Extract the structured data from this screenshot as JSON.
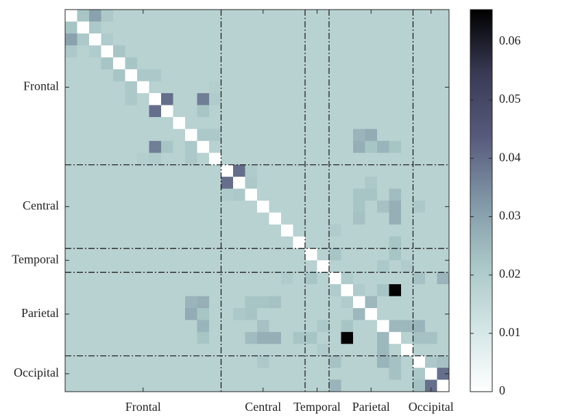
{
  "chart_data": {
    "type": "heatmap",
    "groups": [
      "Frontal",
      "Central",
      "Temporal",
      "Parietal",
      "Occipital"
    ],
    "group_sizes": [
      13,
      7,
      2,
      7,
      3
    ],
    "zlim": [
      0,
      0.0655
    ],
    "zticks": [
      0,
      0.01,
      0.02,
      0.03,
      0.04,
      0.05,
      0.06
    ],
    "colormap": [
      "#ffffff",
      "#d3e5e5",
      "#a9c6c6",
      "#8096a6",
      "#575a7c",
      "#3a3a56",
      "#000000"
    ],
    "values": [
      [
        0,
        0.022,
        0.03,
        0.021,
        0.018,
        0.018,
        0.018,
        0.018,
        0.018,
        0.018,
        0.018,
        0.018,
        0.018,
        0.018,
        0.018,
        0.018,
        0.018,
        0.018,
        0.018,
        0.018,
        0.018,
        0.018,
        0.018,
        0.018,
        0.018,
        0.018,
        0.018,
        0.018,
        0.018,
        0.018,
        0.018,
        0.018
      ],
      [
        0.022,
        0,
        0.021,
        0.018,
        0.018,
        0.018,
        0.018,
        0.018,
        0.018,
        0.018,
        0.018,
        0.018,
        0.018,
        0.018,
        0.018,
        0.018,
        0.018,
        0.018,
        0.018,
        0.018,
        0.018,
        0.018,
        0.018,
        0.018,
        0.018,
        0.018,
        0.018,
        0.018,
        0.018,
        0.018,
        0.018,
        0.018
      ],
      [
        0.03,
        0.021,
        0,
        0.02,
        0.018,
        0.018,
        0.018,
        0.018,
        0.018,
        0.018,
        0.018,
        0.018,
        0.018,
        0.018,
        0.018,
        0.018,
        0.018,
        0.018,
        0.018,
        0.018,
        0.018,
        0.018,
        0.018,
        0.018,
        0.018,
        0.018,
        0.018,
        0.018,
        0.018,
        0.018,
        0.018,
        0.018
      ],
      [
        0.021,
        0.018,
        0.02,
        0,
        0.022,
        0.018,
        0.018,
        0.018,
        0.018,
        0.018,
        0.018,
        0.018,
        0.018,
        0.018,
        0.018,
        0.018,
        0.018,
        0.018,
        0.018,
        0.018,
        0.018,
        0.018,
        0.018,
        0.018,
        0.018,
        0.018,
        0.018,
        0.018,
        0.018,
        0.018,
        0.018,
        0.018
      ],
      [
        0.018,
        0.018,
        0.018,
        0.022,
        0,
        0.022,
        0.018,
        0.018,
        0.018,
        0.018,
        0.018,
        0.018,
        0.018,
        0.018,
        0.018,
        0.018,
        0.018,
        0.018,
        0.018,
        0.018,
        0.018,
        0.018,
        0.018,
        0.018,
        0.018,
        0.018,
        0.018,
        0.018,
        0.018,
        0.018,
        0.018,
        0.018
      ],
      [
        0.018,
        0.018,
        0.018,
        0.018,
        0.022,
        0,
        0.021,
        0.021,
        0.018,
        0.018,
        0.018,
        0.018,
        0.018,
        0.018,
        0.018,
        0.018,
        0.018,
        0.018,
        0.018,
        0.018,
        0.018,
        0.018,
        0.018,
        0.018,
        0.018,
        0.018,
        0.018,
        0.018,
        0.018,
        0.018,
        0.018,
        0.018
      ],
      [
        0.018,
        0.018,
        0.018,
        0.018,
        0.018,
        0.021,
        0,
        0.018,
        0.018,
        0.018,
        0.018,
        0.018,
        0.019,
        0.018,
        0.018,
        0.018,
        0.018,
        0.018,
        0.018,
        0.018,
        0.018,
        0.018,
        0.018,
        0.018,
        0.018,
        0.018,
        0.018,
        0.018,
        0.018,
        0.018,
        0.018,
        0.018
      ],
      [
        0.018,
        0.018,
        0.018,
        0.018,
        0.018,
        0.021,
        0.018,
        0,
        0.04,
        0.018,
        0.018,
        0.037,
        0.02,
        0.018,
        0.018,
        0.018,
        0.018,
        0.018,
        0.018,
        0.018,
        0.018,
        0.018,
        0.018,
        0.018,
        0.018,
        0.018,
        0.018,
        0.018,
        0.018,
        0.018,
        0.018,
        0.018
      ],
      [
        0.018,
        0.018,
        0.018,
        0.018,
        0.018,
        0.018,
        0.018,
        0.04,
        0,
        0.018,
        0.018,
        0.022,
        0.018,
        0.018,
        0.018,
        0.018,
        0.018,
        0.018,
        0.018,
        0.018,
        0.018,
        0.018,
        0.018,
        0.018,
        0.018,
        0.018,
        0.018,
        0.018,
        0.018,
        0.018,
        0.018,
        0.018
      ],
      [
        0.018,
        0.018,
        0.018,
        0.018,
        0.018,
        0.018,
        0.018,
        0.018,
        0.018,
        0,
        0.018,
        0.018,
        0.018,
        0.018,
        0.018,
        0.018,
        0.018,
        0.018,
        0.018,
        0.018,
        0.018,
        0.018,
        0.018,
        0.018,
        0.018,
        0.018,
        0.018,
        0.018,
        0.018,
        0.018,
        0.018,
        0.018
      ],
      [
        0.018,
        0.018,
        0.018,
        0.018,
        0.018,
        0.018,
        0.018,
        0.018,
        0.018,
        0.018,
        0,
        0.021,
        0.021,
        0.018,
        0.018,
        0.018,
        0.018,
        0.018,
        0.018,
        0.018,
        0.018,
        0.018,
        0.018,
        0.018,
        0.026,
        0.028,
        0.018,
        0.018,
        0.018,
        0.018,
        0.018,
        0.018
      ],
      [
        0.018,
        0.018,
        0.018,
        0.018,
        0.018,
        0.018,
        0.018,
        0.037,
        0.022,
        0.018,
        0.021,
        0,
        0.018,
        0.018,
        0.018,
        0.018,
        0.018,
        0.018,
        0.018,
        0.018,
        0.018,
        0.018,
        0.018,
        0.018,
        0.027,
        0.022,
        0.026,
        0.022,
        0.018,
        0.018,
        0.018,
        0.018
      ],
      [
        0.018,
        0.018,
        0.018,
        0.018,
        0.018,
        0.018,
        0.019,
        0.02,
        0.018,
        0.018,
        0.021,
        0.018,
        0,
        0.018,
        0.018,
        0.018,
        0.018,
        0.018,
        0.018,
        0.018,
        0.018,
        0.018,
        0.018,
        0.018,
        0.018,
        0.018,
        0.018,
        0.018,
        0.018,
        0.018,
        0.018,
        0.018
      ],
      [
        0.018,
        0.018,
        0.018,
        0.018,
        0.018,
        0.018,
        0.018,
        0.018,
        0.018,
        0.018,
        0.018,
        0.018,
        0.018,
        0,
        0.04,
        0.02,
        0.018,
        0.018,
        0.018,
        0.018,
        0.018,
        0.018,
        0.018,
        0.018,
        0.018,
        0.018,
        0.018,
        0.018,
        0.018,
        0.018,
        0.018,
        0.018
      ],
      [
        0.018,
        0.018,
        0.018,
        0.018,
        0.018,
        0.018,
        0.018,
        0.018,
        0.018,
        0.018,
        0.018,
        0.018,
        0.018,
        0.04,
        0,
        0.021,
        0.018,
        0.018,
        0.018,
        0.018,
        0.018,
        0.018,
        0.018,
        0.018,
        0.018,
        0.021,
        0.018,
        0.018,
        0.018,
        0.018,
        0.018,
        0.018
      ],
      [
        0.018,
        0.018,
        0.018,
        0.018,
        0.018,
        0.018,
        0.018,
        0.018,
        0.018,
        0.018,
        0.018,
        0.018,
        0.018,
        0.02,
        0.021,
        0,
        0.018,
        0.018,
        0.018,
        0.018,
        0.018,
        0.018,
        0.018,
        0.018,
        0.022,
        0.022,
        0.018,
        0.024,
        0.018,
        0.018,
        0.018,
        0.018
      ],
      [
        0.018,
        0.018,
        0.018,
        0.018,
        0.018,
        0.018,
        0.018,
        0.018,
        0.018,
        0.018,
        0.018,
        0.018,
        0.018,
        0.018,
        0.018,
        0.018,
        0,
        0.018,
        0.018,
        0.018,
        0.018,
        0.018,
        0.018,
        0.018,
        0.022,
        0.018,
        0.023,
        0.027,
        0.018,
        0.021,
        0.018,
        0.018
      ],
      [
        0.018,
        0.018,
        0.018,
        0.018,
        0.018,
        0.018,
        0.018,
        0.018,
        0.018,
        0.018,
        0.018,
        0.018,
        0.018,
        0.018,
        0.018,
        0.018,
        0.018,
        0,
        0.018,
        0.018,
        0.018,
        0.018,
        0.018,
        0.018,
        0.023,
        0.018,
        0.018,
        0.027,
        0.018,
        0.018,
        0.018,
        0.018
      ],
      [
        0.018,
        0.018,
        0.018,
        0.018,
        0.018,
        0.018,
        0.018,
        0.018,
        0.018,
        0.018,
        0.018,
        0.018,
        0.018,
        0.018,
        0.018,
        0.018,
        0.018,
        0.018,
        0,
        0.018,
        0.018,
        0.018,
        0.02,
        0.018,
        0.018,
        0.018,
        0.018,
        0.018,
        0.018,
        0.018,
        0.018,
        0.018
      ],
      [
        0.018,
        0.018,
        0.018,
        0.018,
        0.018,
        0.018,
        0.018,
        0.018,
        0.018,
        0.018,
        0.018,
        0.018,
        0.018,
        0.018,
        0.018,
        0.018,
        0.018,
        0.018,
        0.018,
        0,
        0.018,
        0.018,
        0.018,
        0.018,
        0.018,
        0.018,
        0.018,
        0.022,
        0.018,
        0.018,
        0.018,
        0.018
      ],
      [
        0.018,
        0.018,
        0.018,
        0.018,
        0.018,
        0.018,
        0.018,
        0.018,
        0.018,
        0.018,
        0.018,
        0.018,
        0.018,
        0.018,
        0.018,
        0.018,
        0.018,
        0.018,
        0.018,
        0.018,
        0,
        0.018,
        0.022,
        0.018,
        0.018,
        0.018,
        0.018,
        0.022,
        0.018,
        0.018,
        0.018,
        0.018
      ],
      [
        0.018,
        0.018,
        0.018,
        0.018,
        0.018,
        0.018,
        0.018,
        0.018,
        0.018,
        0.018,
        0.018,
        0.018,
        0.018,
        0.018,
        0.018,
        0.018,
        0.018,
        0.018,
        0.018,
        0.018,
        0.018,
        0,
        0.018,
        0.018,
        0.018,
        0.018,
        0.021,
        0.018,
        0.02,
        0.018,
        0.018,
        0.018
      ],
      [
        0.018,
        0.018,
        0.018,
        0.018,
        0.018,
        0.018,
        0.018,
        0.018,
        0.018,
        0.018,
        0.018,
        0.018,
        0.018,
        0.018,
        0.018,
        0.018,
        0.018,
        0.018,
        0.02,
        0.018,
        0.022,
        0.018,
        0,
        0.02,
        0.018,
        0.018,
        0.018,
        0.018,
        0.018,
        0.023,
        0.018,
        0.026
      ],
      [
        0.018,
        0.018,
        0.018,
        0.018,
        0.018,
        0.018,
        0.018,
        0.018,
        0.018,
        0.018,
        0.018,
        0.018,
        0.018,
        0.018,
        0.018,
        0.018,
        0.018,
        0.018,
        0.018,
        0.018,
        0.018,
        0.018,
        0.02,
        0,
        0.02,
        0.018,
        0.022,
        0.065,
        0.018,
        0.018,
        0.018,
        0.018
      ],
      [
        0.018,
        0.018,
        0.018,
        0.018,
        0.018,
        0.018,
        0.018,
        0.018,
        0.018,
        0.018,
        0.026,
        0.027,
        0.018,
        0.018,
        0.018,
        0.022,
        0.022,
        0.023,
        0.018,
        0.018,
        0.018,
        0.018,
        0.018,
        0.02,
        0,
        0.025,
        0.018,
        0.018,
        0.018,
        0.018,
        0.018,
        0.018
      ],
      [
        0.018,
        0.018,
        0.018,
        0.018,
        0.018,
        0.018,
        0.018,
        0.018,
        0.018,
        0.018,
        0.028,
        0.022,
        0.018,
        0.018,
        0.021,
        0.022,
        0.018,
        0.018,
        0.018,
        0.018,
        0.018,
        0.018,
        0.018,
        0.018,
        0.025,
        0,
        0.018,
        0.018,
        0.018,
        0.018,
        0.018,
        0.018
      ],
      [
        0.018,
        0.018,
        0.018,
        0.018,
        0.018,
        0.018,
        0.018,
        0.018,
        0.018,
        0.018,
        0.018,
        0.026,
        0.018,
        0.018,
        0.018,
        0.018,
        0.023,
        0.018,
        0.018,
        0.018,
        0.018,
        0.021,
        0.018,
        0.022,
        0.018,
        0.018,
        0,
        0.025,
        0.025,
        0.026,
        0.018,
        0.018
      ],
      [
        0.018,
        0.018,
        0.018,
        0.018,
        0.018,
        0.018,
        0.018,
        0.018,
        0.018,
        0.018,
        0.018,
        0.022,
        0.018,
        0.018,
        0.018,
        0.024,
        0.027,
        0.027,
        0.018,
        0.022,
        0.022,
        0.018,
        0.018,
        0.065,
        0.018,
        0.018,
        0.025,
        0,
        0.018,
        0.023,
        0.023,
        0.018
      ],
      [
        0.018,
        0.018,
        0.018,
        0.018,
        0.018,
        0.018,
        0.018,
        0.018,
        0.018,
        0.018,
        0.018,
        0.018,
        0.018,
        0.018,
        0.018,
        0.018,
        0.018,
        0.018,
        0.018,
        0.018,
        0.018,
        0.02,
        0.018,
        0.018,
        0.018,
        0.018,
        0.025,
        0.018,
        0,
        0.018,
        0.018,
        0.018
      ],
      [
        0.018,
        0.018,
        0.018,
        0.018,
        0.018,
        0.018,
        0.018,
        0.018,
        0.018,
        0.018,
        0.018,
        0.018,
        0.018,
        0.018,
        0.018,
        0.018,
        0.021,
        0.018,
        0.018,
        0.018,
        0.018,
        0.018,
        0.023,
        0.018,
        0.018,
        0.018,
        0.026,
        0.023,
        0.018,
        0,
        0.021,
        0.023
      ],
      [
        0.018,
        0.018,
        0.018,
        0.018,
        0.018,
        0.018,
        0.018,
        0.018,
        0.018,
        0.018,
        0.018,
        0.018,
        0.018,
        0.018,
        0.018,
        0.018,
        0.018,
        0.018,
        0.018,
        0.018,
        0.018,
        0.018,
        0.018,
        0.018,
        0.018,
        0.018,
        0.018,
        0.023,
        0.018,
        0.021,
        0,
        0.04
      ],
      [
        0.018,
        0.018,
        0.018,
        0.018,
        0.018,
        0.018,
        0.018,
        0.018,
        0.018,
        0.018,
        0.018,
        0.018,
        0.018,
        0.018,
        0.018,
        0.018,
        0.018,
        0.018,
        0.018,
        0.018,
        0.018,
        0.018,
        0.026,
        0.018,
        0.018,
        0.018,
        0.018,
        0.018,
        0.018,
        0.023,
        0.04,
        0
      ]
    ]
  }
}
